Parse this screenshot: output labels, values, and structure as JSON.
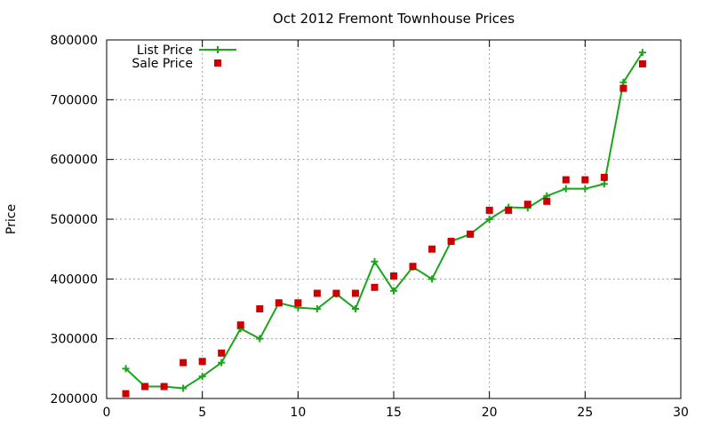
{
  "chart_data": {
    "type": "line",
    "title": "Oct 2012 Fremont Townhouse Prices",
    "xlabel": "",
    "ylabel": "Price",
    "xlim": [
      0,
      30
    ],
    "ylim": [
      200000,
      800000
    ],
    "x_ticks": [
      0,
      5,
      10,
      15,
      20,
      25,
      30
    ],
    "y_ticks": [
      200000,
      300000,
      400000,
      500000,
      600000,
      700000,
      800000
    ],
    "grid": true,
    "legend_position": "top-left",
    "series": [
      {
        "name": "List Price",
        "style": "line with plus markers",
        "color": "#1aa51a",
        "x": [
          1,
          2,
          3,
          4,
          5,
          6,
          7,
          8,
          9,
          10,
          11,
          12,
          13,
          14,
          15,
          16,
          17,
          18,
          19,
          20,
          21,
          22,
          23,
          24,
          25,
          26,
          27,
          28
        ],
        "y": [
          250000,
          220000,
          220000,
          217000,
          237000,
          260000,
          317000,
          300000,
          360000,
          352000,
          350000,
          375000,
          350000,
          429000,
          380000,
          420000,
          400000,
          463000,
          475000,
          500000,
          520000,
          519000,
          539000,
          551000,
          551000,
          559000,
          729000,
          779000
        ]
      },
      {
        "name": "Sale Price",
        "style": "square markers",
        "color": "#cc0000",
        "x": [
          1,
          2,
          3,
          4,
          5,
          6,
          7,
          8,
          9,
          10,
          11,
          12,
          13,
          14,
          15,
          16,
          17,
          18,
          19,
          20,
          21,
          22,
          23,
          24,
          25,
          26,
          27,
          28
        ],
        "y": [
          208000,
          220000,
          220000,
          260000,
          262000,
          276000,
          323000,
          350000,
          360000,
          360000,
          376000,
          376000,
          376000,
          386000,
          405000,
          421000,
          450000,
          463000,
          475000,
          515000,
          515000,
          525000,
          530000,
          566000,
          566000,
          570000,
          719000,
          760000
        ]
      }
    ]
  }
}
